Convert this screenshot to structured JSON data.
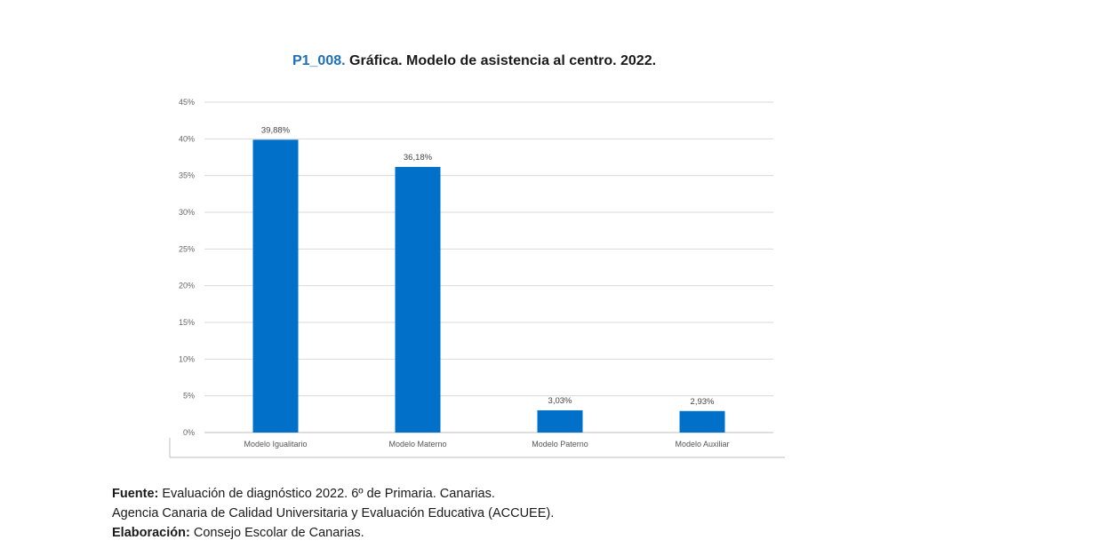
{
  "header": {
    "code": "P1_008.",
    "title": "Gráfica. Modelo de asistencia al centro. 2022."
  },
  "chart_data": {
    "type": "bar",
    "categories": [
      "Modelo Igualitario",
      "Modelo Materno",
      "Modelo Paterno",
      "Modelo Auxiliar"
    ],
    "values": [
      39.88,
      36.18,
      3.03,
      2.93
    ],
    "data_labels": [
      "39,88%",
      "36,18%",
      "3,03%",
      "2,93%"
    ],
    "yticks": [
      "0%",
      "5%",
      "10%",
      "15%",
      "20%",
      "25%",
      "30%",
      "35%",
      "40%",
      "45%"
    ],
    "ylim": [
      0,
      45
    ],
    "grid": true,
    "bar_color": "#0070c8"
  },
  "footer": {
    "source_label": "Fuente:",
    "source_text": "Evaluación de diagnóstico 2022. 6º de Primaria. Canarias.",
    "agency": "Agencia Canaria de Calidad Universitaria y Evaluación Educativa (ACCUEE).",
    "elab_label": "Elaboración:",
    "elab_text": "Consejo Escolar de Canarias."
  }
}
